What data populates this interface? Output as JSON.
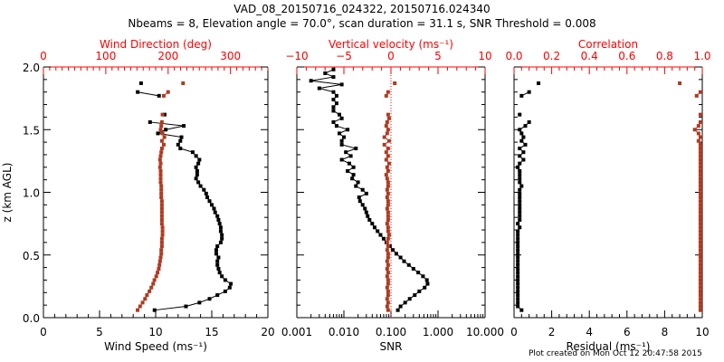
{
  "header": {
    "title": "VAD_08_20150716_024322, 20150716.024340",
    "subtitle": "Nbeams = 8, Elevation angle = 70.0°, scan duration = 31.1 s, SNR Threshold = 0.008"
  },
  "footer": {
    "created": "Plot created on Mon Oct 12 20:47:58 2015"
  },
  "colors": {
    "primary": "#000000",
    "secondary": "#b03a20",
    "top_axis": "#ff0000"
  },
  "chart_data": [
    {
      "type": "line",
      "name": "wind-panel",
      "ylabel": "z (km AGL)",
      "ylim": [
        0,
        2.0
      ],
      "yticks": [
        "0.0",
        "0.5",
        "1.0",
        "1.5",
        "2.0"
      ],
      "xlabel": "Wind Speed (ms⁻¹)",
      "xlim": [
        0,
        20
      ],
      "xticks": [
        "0",
        "5",
        "10",
        "15",
        "20"
      ],
      "top_xlabel": "Wind Direction (deg)",
      "top_xlim": [
        0,
        360
      ],
      "top_xticks": [
        "0",
        "100",
        "200",
        "300"
      ],
      "series": [
        {
          "name": "Wind Speed",
          "axis": "bottom",
          "color": "#000000",
          "z": [
            0.06,
            0.09,
            0.12,
            0.15,
            0.18,
            0.21,
            0.24,
            0.27,
            0.3,
            0.33,
            0.36,
            0.39,
            0.42,
            0.45,
            0.48,
            0.51,
            0.54,
            0.57,
            0.6,
            0.63,
            0.66,
            0.69,
            0.72,
            0.75,
            0.78,
            0.81,
            0.84,
            0.87,
            0.9,
            0.93,
            0.96,
            0.99,
            1.02,
            1.05,
            1.08,
            1.11,
            1.14,
            1.17,
            1.2,
            1.23,
            1.26,
            1.29,
            1.32,
            1.35,
            1.38,
            1.41,
            1.44,
            1.47,
            1.5,
            1.53,
            1.56,
            1.62,
            1.77,
            1.8,
            1.87
          ],
          "values": [
            9.9,
            12.7,
            13.9,
            14.8,
            15.5,
            16.2,
            16.6,
            16.7,
            16.2,
            15.9,
            15.7,
            15.6,
            15.5,
            15.5,
            15.6,
            15.4,
            15.4,
            15.5,
            15.8,
            15.9,
            15.9,
            15.8,
            15.8,
            15.7,
            15.6,
            15.5,
            15.3,
            15.2,
            15.0,
            14.8,
            14.6,
            14.5,
            14.3,
            14.0,
            13.8,
            13.6,
            13.7,
            13.7,
            13.6,
            13.8,
            13.9,
            13.6,
            13.3,
            12.2,
            12.0,
            12.2,
            12.3,
            10.2,
            10.9,
            12.5,
            9.5,
            10.8,
            10.3,
            8.4,
            8.7
          ]
        },
        {
          "name": "Wind Direction",
          "axis": "top",
          "color": "#b03a20",
          "z": [
            0.06,
            0.09,
            0.12,
            0.15,
            0.18,
            0.21,
            0.24,
            0.27,
            0.3,
            0.33,
            0.36,
            0.39,
            0.42,
            0.45,
            0.48,
            0.51,
            0.54,
            0.57,
            0.6,
            0.63,
            0.66,
            0.69,
            0.72,
            0.75,
            0.78,
            0.81,
            0.84,
            0.87,
            0.9,
            0.93,
            0.96,
            0.99,
            1.02,
            1.05,
            1.08,
            1.11,
            1.14,
            1.17,
            1.2,
            1.23,
            1.26,
            1.29,
            1.32,
            1.35,
            1.38,
            1.41,
            1.44,
            1.47,
            1.5,
            1.53,
            1.56,
            1.62,
            1.77,
            1.8,
            1.87
          ],
          "values": [
            151,
            155,
            159,
            163,
            166,
            170,
            173,
            176,
            178,
            181,
            183,
            185,
            186,
            187,
            188,
            189,
            189,
            190,
            190,
            190,
            191,
            191,
            191,
            190,
            190,
            190,
            190,
            190,
            190,
            190,
            189,
            189,
            189,
            189,
            188,
            188,
            188,
            188,
            187,
            188,
            187,
            188,
            189,
            190,
            193,
            190,
            194,
            191,
            188,
            189,
            190,
            191,
            193,
            200,
            224
          ]
        }
      ]
    },
    {
      "type": "line",
      "name": "snr-panel",
      "xlabel": "SNR",
      "xscale": "log",
      "xlim": [
        0.001,
        10.0
      ],
      "xticks": [
        "0.001",
        "0.010",
        "0.100",
        "1.000",
        "10.000"
      ],
      "top_xlabel": "Vertical velocity (ms⁻¹)",
      "top_xlim": [
        -10,
        10
      ],
      "top_xticks": [
        "−10",
        "−5",
        "0",
        "5",
        "10"
      ],
      "ylim": [
        0,
        2.0
      ],
      "series": [
        {
          "name": "SNR",
          "axis": "bottom",
          "color": "#000000",
          "z": [
            0.06,
            0.09,
            0.12,
            0.15,
            0.18,
            0.21,
            0.24,
            0.27,
            0.3,
            0.33,
            0.36,
            0.39,
            0.42,
            0.45,
            0.48,
            0.51,
            0.54,
            0.57,
            0.6,
            0.63,
            0.66,
            0.69,
            0.72,
            0.75,
            0.78,
            0.81,
            0.84,
            0.87,
            0.9,
            0.93,
            0.96,
            0.99,
            1.02,
            1.05,
            1.08,
            1.11,
            1.14,
            1.17,
            1.2,
            1.23,
            1.26,
            1.29,
            1.32,
            1.35,
            1.38,
            1.41,
            1.44,
            1.47,
            1.5,
            1.53,
            1.56,
            1.59,
            1.62,
            1.65,
            1.68,
            1.71,
            1.74,
            1.77,
            1.8,
            1.83,
            1.86,
            1.89,
            1.92,
            1.95,
            1.98
          ],
          "values": [
            0.14,
            0.16,
            0.2,
            0.25,
            0.32,
            0.4,
            0.52,
            0.6,
            0.58,
            0.48,
            0.38,
            0.3,
            0.24,
            0.19,
            0.16,
            0.13,
            0.11,
            0.095,
            0.08,
            0.07,
            0.06,
            0.052,
            0.045,
            0.04,
            0.035,
            0.032,
            0.03,
            0.028,
            0.025,
            0.022,
            0.021,
            0.03,
            0.025,
            0.018,
            0.02,
            0.015,
            0.016,
            0.012,
            0.016,
            0.013,
            0.009,
            0.014,
            0.011,
            0.018,
            0.009,
            0.009,
            0.01,
            0.008,
            0.012,
            0.007,
            0.006,
            0.009,
            0.008,
            0.006,
            0.006,
            0.007,
            0.006,
            0.007,
            0.006,
            0.003,
            0.009,
            0.002,
            0.006,
            0.004,
            0.006
          ]
        },
        {
          "name": "Vertical velocity",
          "axis": "top",
          "color": "#b03a20",
          "z": [
            0.06,
            0.09,
            0.12,
            0.15,
            0.18,
            0.21,
            0.24,
            0.27,
            0.3,
            0.33,
            0.36,
            0.39,
            0.42,
            0.45,
            0.48,
            0.51,
            0.54,
            0.57,
            0.6,
            0.63,
            0.66,
            0.69,
            0.72,
            0.75,
            0.78,
            0.81,
            0.84,
            0.87,
            0.9,
            0.93,
            0.96,
            0.99,
            1.02,
            1.05,
            1.08,
            1.11,
            1.14,
            1.17,
            1.2,
            1.23,
            1.26,
            1.29,
            1.32,
            1.35,
            1.38,
            1.41,
            1.44,
            1.47,
            1.5,
            1.53,
            1.56,
            1.59,
            1.62,
            1.77,
            1.8,
            1.87
          ],
          "values": [
            -0.3,
            -0.4,
            -0.3,
            -0.4,
            -0.3,
            -0.3,
            -0.4,
            -0.3,
            -0.3,
            -0.4,
            -0.3,
            -0.4,
            -0.3,
            -0.4,
            -0.3,
            -0.3,
            -0.4,
            -0.3,
            -0.4,
            -0.3,
            -0.2,
            -0.3,
            -0.3,
            -0.4,
            -0.3,
            -0.3,
            -0.3,
            -0.4,
            -0.3,
            -0.3,
            -0.4,
            -0.3,
            -0.4,
            -0.3,
            -0.3,
            -0.4,
            -0.5,
            -0.3,
            -0.4,
            -0.2,
            -0.5,
            -0.3,
            -0.5,
            -0.3,
            -0.7,
            -0.2,
            -0.7,
            -0.4,
            -0.3,
            -0.5,
            -0.4,
            -0.2,
            -0.3,
            -0.5,
            -0.3,
            0.4
          ]
        }
      ]
    },
    {
      "type": "line",
      "name": "residual-panel",
      "xlabel": "Residual (ms⁻¹)",
      "xlim": [
        0,
        10
      ],
      "xticks": [
        "0",
        "2",
        "4",
        "6",
        "8",
        "10"
      ],
      "top_xlabel": "Correlation",
      "top_xlim": [
        0.0,
        1.0
      ],
      "top_xticks": [
        "0.0",
        "0.2",
        "0.4",
        "0.6",
        "0.8",
        "1.0"
      ],
      "ylim": [
        0,
        2.0
      ],
      "series": [
        {
          "name": "Residual",
          "axis": "bottom",
          "color": "#000000",
          "z": [
            0.06,
            0.09,
            0.12,
            0.15,
            0.18,
            0.21,
            0.24,
            0.27,
            0.3,
            0.33,
            0.36,
            0.39,
            0.42,
            0.45,
            0.48,
            0.51,
            0.54,
            0.57,
            0.6,
            0.63,
            0.66,
            0.69,
            0.72,
            0.75,
            0.78,
            0.81,
            0.84,
            0.87,
            0.9,
            0.93,
            0.96,
            0.99,
            1.02,
            1.05,
            1.08,
            1.11,
            1.14,
            1.17,
            1.2,
            1.23,
            1.26,
            1.29,
            1.32,
            1.35,
            1.38,
            1.41,
            1.44,
            1.47,
            1.5,
            1.53,
            1.56,
            1.62,
            1.77,
            1.8,
            1.87
          ],
          "values": [
            0.4,
            0.2,
            0.2,
            0.2,
            0.2,
            0.2,
            0.2,
            0.2,
            0.2,
            0.2,
            0.2,
            0.2,
            0.2,
            0.2,
            0.2,
            0.2,
            0.2,
            0.2,
            0.2,
            0.2,
            0.2,
            0.2,
            0.3,
            0.2,
            0.3,
            0.3,
            0.3,
            0.3,
            0.3,
            0.3,
            0.3,
            0.3,
            0.3,
            0.4,
            0.3,
            0.3,
            0.3,
            0.3,
            0.2,
            0.3,
            0.5,
            0.3,
            0.5,
            0.3,
            0.6,
            0.4,
            0.5,
            0.4,
            0.3,
            0.6,
            0.8,
            0.3,
            0.4,
            0.8,
            1.3
          ]
        },
        {
          "name": "Correlation",
          "axis": "top",
          "color": "#b03a20",
          "z": [
            0.06,
            0.09,
            0.12,
            0.15,
            0.18,
            0.21,
            0.24,
            0.27,
            0.3,
            0.33,
            0.36,
            0.39,
            0.42,
            0.45,
            0.48,
            0.51,
            0.54,
            0.57,
            0.6,
            0.63,
            0.66,
            0.69,
            0.72,
            0.75,
            0.78,
            0.81,
            0.84,
            0.87,
            0.9,
            0.93,
            0.96,
            0.99,
            1.02,
            1.05,
            1.08,
            1.11,
            1.14,
            1.17,
            1.2,
            1.23,
            1.26,
            1.29,
            1.32,
            1.35,
            1.38,
            1.41,
            1.44,
            1.47,
            1.5,
            1.53,
            1.56,
            1.62,
            1.77,
            1.8,
            1.87
          ],
          "values": [
            0.99,
            0.99,
            0.99,
            0.99,
            0.99,
            0.99,
            0.99,
            0.99,
            0.99,
            0.99,
            0.99,
            0.99,
            0.99,
            0.99,
            0.99,
            0.99,
            0.99,
            0.99,
            0.99,
            0.99,
            0.99,
            0.99,
            0.99,
            0.99,
            0.99,
            0.99,
            0.99,
            0.99,
            0.99,
            0.99,
            0.99,
            0.99,
            0.99,
            0.99,
            0.99,
            0.99,
            0.99,
            0.99,
            0.99,
            0.99,
            0.99,
            0.99,
            0.99,
            0.99,
            0.99,
            0.98,
            0.99,
            0.98,
            0.96,
            0.98,
            0.99,
            0.99,
            0.97,
            0.99,
            0.88
          ]
        }
      ]
    }
  ]
}
